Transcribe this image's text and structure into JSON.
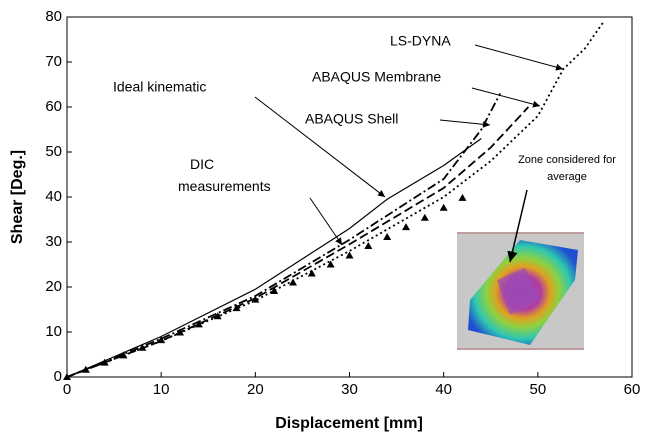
{
  "chart_data": {
    "type": "line",
    "xlabel": "Displacement [mm]",
    "ylabel": "Shear [Deg.]",
    "xlim": [
      0,
      60
    ],
    "xticks": [
      0,
      10,
      20,
      30,
      40,
      50,
      60
    ],
    "ylim": [
      0,
      80
    ],
    "yticks": [
      0,
      10,
      20,
      30,
      40,
      50,
      60,
      70,
      80
    ],
    "series": [
      {
        "name": "Ideal kinematic",
        "color": "#000000",
        "style": "solid",
        "x": [
          0,
          10,
          20,
          30,
          34,
          40,
          44
        ],
        "values": [
          0,
          9,
          19.5,
          33,
          39.5,
          47,
          53
        ]
      },
      {
        "name": "LS-DYNA",
        "color": "#000000",
        "style": "dotted",
        "x": [
          0,
          10,
          20,
          30,
          40,
          45,
          50,
          52.7,
          55,
          57
        ],
        "values": [
          0,
          8,
          17,
          28,
          40,
          48,
          58,
          68.4,
          73,
          79
        ]
      },
      {
        "name": "ABAQUS Membrane",
        "color": "#000000",
        "style": "dashed",
        "x": [
          0,
          10,
          20,
          30,
          40,
          45,
          49
        ],
        "values": [
          0,
          8,
          17.5,
          29.5,
          42,
          51,
          60
        ]
      },
      {
        "name": "ABAQUS Shell",
        "color": "#000000",
        "style": "dashdot",
        "x": [
          0,
          10,
          20,
          30,
          40,
          44,
          46
        ],
        "values": [
          0,
          8.5,
          18,
          30.5,
          44,
          55,
          63
        ]
      },
      {
        "name": "DIC measurements",
        "color": "#000000",
        "style": "triangles",
        "x": [
          0,
          2,
          4,
          6,
          8,
          10,
          12,
          14,
          16,
          18,
          20,
          22,
          24,
          26,
          28,
          30,
          32,
          34,
          36,
          38,
          40,
          42
        ],
        "values": [
          0,
          1.6,
          3.2,
          4.8,
          6.5,
          8.2,
          9.9,
          11.7,
          13.5,
          15.3,
          17.2,
          19.1,
          21.0,
          23.0,
          25.0,
          27.0,
          29.1,
          31.1,
          33.3,
          35.4,
          37.6,
          39.8
        ]
      }
    ],
    "inset_annotation": [
      "Zone considered for",
      "average"
    ]
  }
}
